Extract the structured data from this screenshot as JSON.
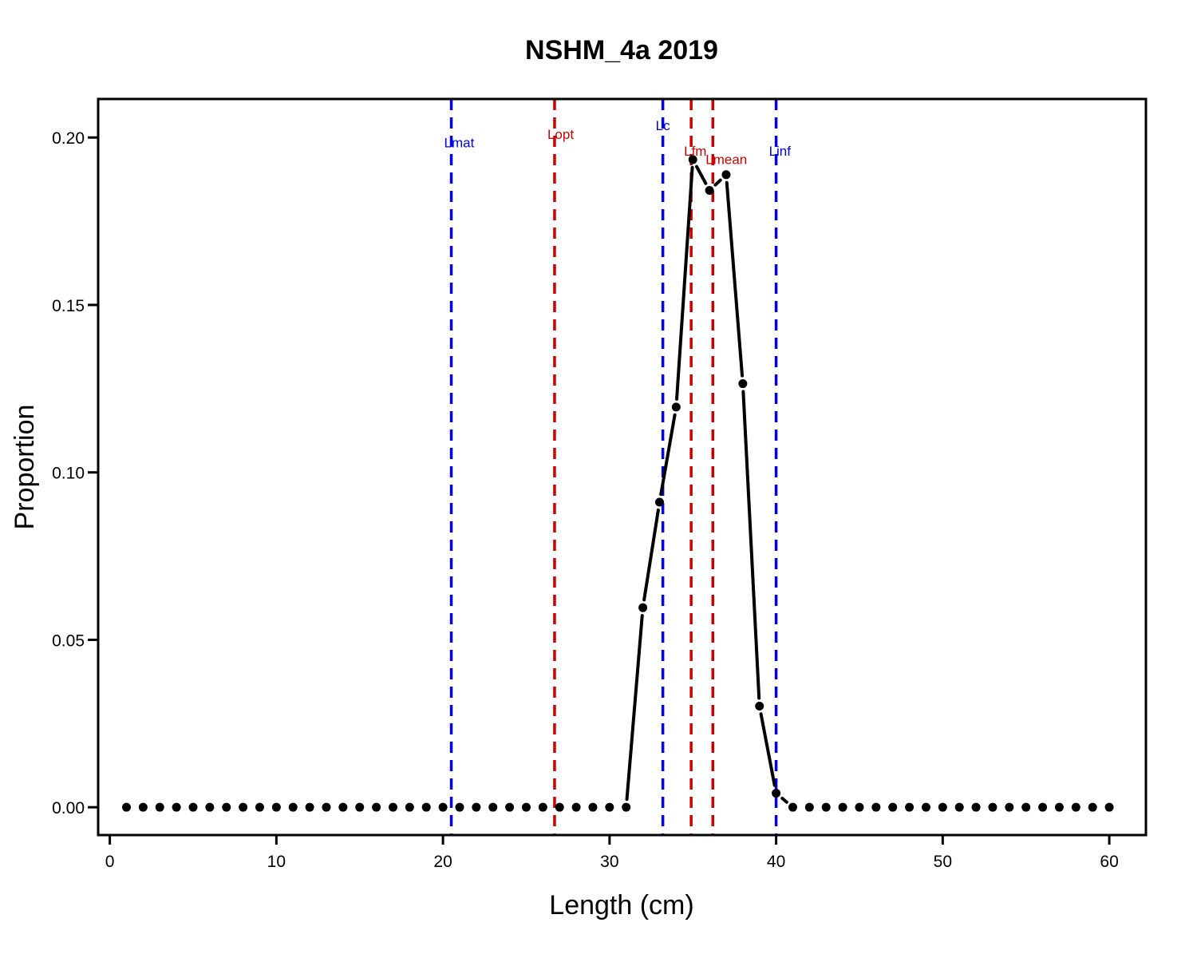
{
  "chart_data": {
    "type": "line",
    "title": "NSHM_4a 2019",
    "xlabel": "Length (cm)",
    "ylabel": "Proportion",
    "xlim": [
      -0.7,
      62.2
    ],
    "ylim": [
      -0.0083,
      0.2115
    ],
    "xticks": [
      0,
      10,
      20,
      30,
      40,
      50,
      60
    ],
    "xtick_labels": [
      "0",
      "10",
      "20",
      "30",
      "40",
      "50",
      "60"
    ],
    "yticks": [
      0.0,
      0.05,
      0.1,
      0.15,
      0.2
    ],
    "ytick_labels": [
      "0.00",
      "0.05",
      "0.10",
      "0.15",
      "0.20"
    ],
    "grid": false,
    "legend": "none",
    "series": [
      {
        "x": [
          1,
          2,
          3,
          4,
          5,
          6,
          7,
          8,
          9,
          10,
          11,
          12,
          13,
          14,
          15,
          16,
          17,
          18,
          19,
          20,
          21,
          22,
          23,
          24,
          25,
          26,
          27,
          28,
          29,
          30,
          31,
          32,
          33,
          34,
          35,
          36,
          37,
          38,
          39,
          40,
          41,
          42,
          43,
          44,
          45,
          46,
          47,
          48,
          49,
          50,
          51,
          52,
          53,
          54,
          55,
          56,
          57,
          58,
          59,
          60
        ],
        "values": [
          0,
          0,
          0,
          0,
          0,
          0,
          0,
          0,
          0,
          0,
          0,
          0,
          0,
          0,
          0,
          0,
          0,
          0,
          0,
          0,
          0,
          0,
          0,
          0,
          0,
          0,
          0,
          0,
          0,
          0,
          0,
          0.0596,
          0.0911,
          0.1195,
          0.1934,
          0.1842,
          0.1889,
          0.1265,
          0.0302,
          0.0042,
          0,
          0,
          0,
          0,
          0,
          0,
          0,
          0,
          0,
          0,
          0,
          0,
          0,
          0,
          0,
          0,
          0,
          0,
          0,
          0
        ],
        "color": "#000000"
      }
    ],
    "reference_lines": [
      {
        "label": "Lmat",
        "x": 20.5,
        "color": "#0000ee",
        "label_y": 0.1971
      },
      {
        "label": "Lopt",
        "x": 26.7,
        "color": "#cc0000",
        "label_y": 0.1996
      },
      {
        "label": "Lc",
        "x": 33.2,
        "color": "#0000ee",
        "label_y": 0.2022
      },
      {
        "label": "Lfm",
        "x": 34.9,
        "color": "#cc0000",
        "label_y": 0.1946
      },
      {
        "label": "Lmean",
        "x": 36.2,
        "color": "#cc0000",
        "label_y": 0.1921
      },
      {
        "label": "Linf",
        "x": 40.0,
        "color": "#0000ee",
        "label_y": 0.1946
      }
    ]
  }
}
